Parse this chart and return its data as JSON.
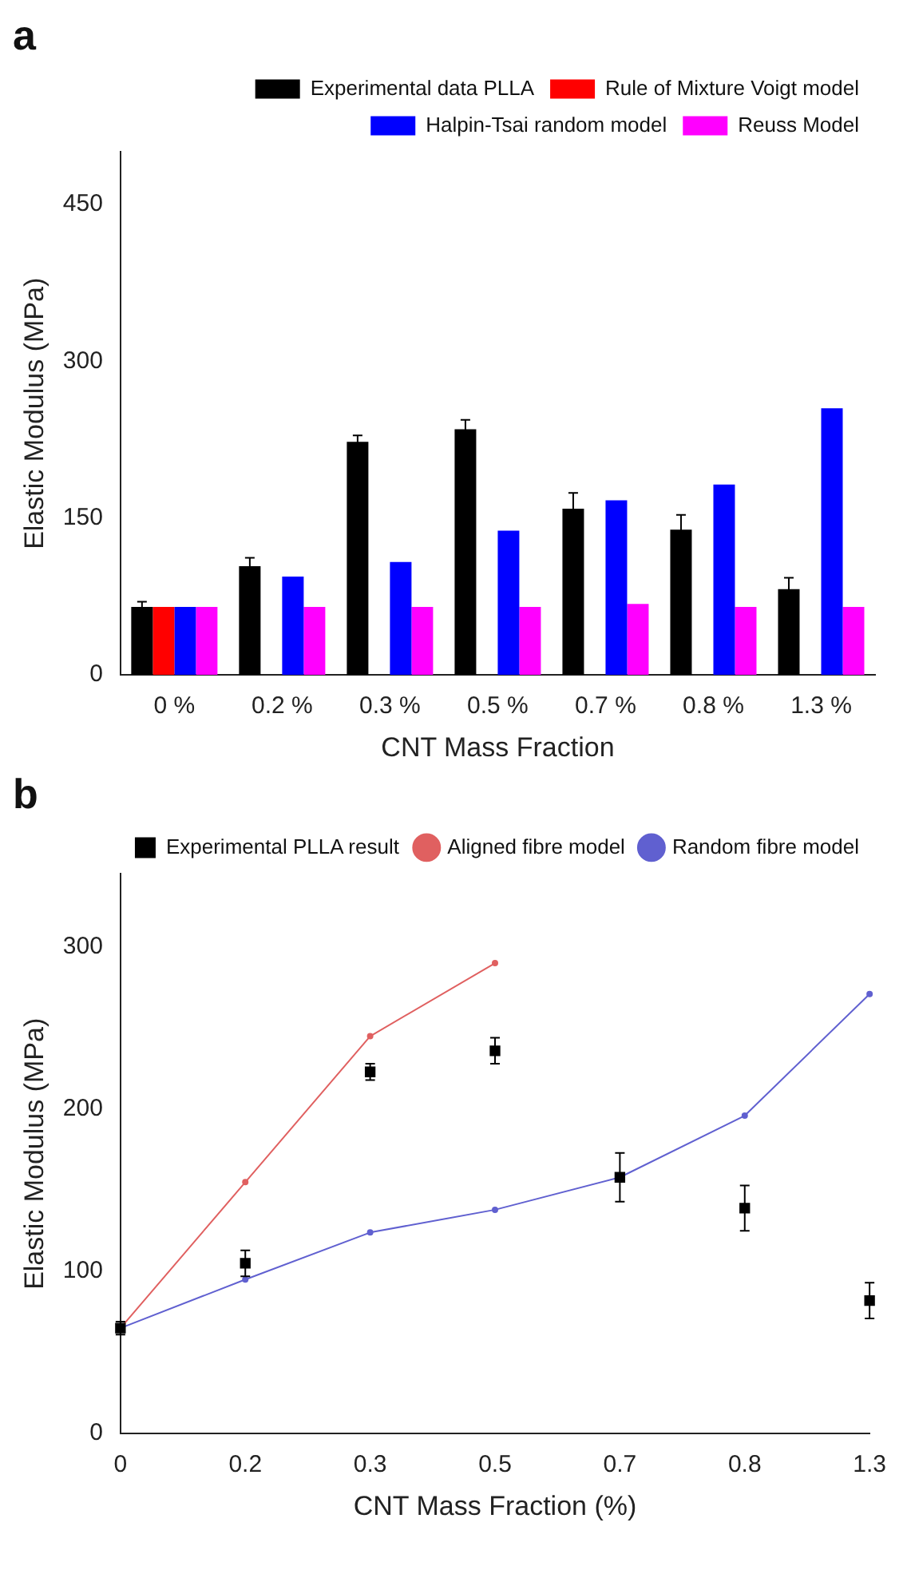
{
  "chart_data": [
    {
      "type": "bar",
      "title": "a",
      "xlabel": "CNT Mass Fraction",
      "ylabel": "Elastic Modulus (MPa)",
      "categories": [
        "0 %",
        "0.2 %",
        "0.3 %",
        "0.5 %",
        "0.7 %",
        "0.8 %",
        "1.3 %"
      ],
      "ylim": [
        0,
        500
      ],
      "yticks": [
        0,
        150,
        300,
        450
      ],
      "legend": "top right",
      "grid": false,
      "series": [
        {
          "name": "Experimental data PLLA",
          "color": "#000000",
          "values": [
            65,
            104,
            223,
            235,
            159,
            139,
            82
          ],
          "errors": [
            5,
            8,
            6,
            9,
            15,
            14,
            11
          ]
        },
        {
          "name": "Rule of Mixture Voigt model",
          "color": "#ff0000",
          "values": [
            65,
            null,
            null,
            null,
            null,
            null,
            null
          ]
        },
        {
          "name": "Halpin-Tsai random model",
          "color": "#0000ff",
          "values": [
            65,
            94,
            108,
            138,
            167,
            182,
            255
          ]
        },
        {
          "name": "Reuss Model",
          "color": "#ff00ff",
          "values": [
            65,
            65,
            65,
            65,
            68,
            65,
            65
          ]
        }
      ]
    },
    {
      "type": "line",
      "title": "b",
      "xlabel": "CNT Mass Fraction (%)",
      "ylabel": "Elastic Modulus (MPa)",
      "categories": [
        "0",
        "0.2",
        "0.3",
        "0.5",
        "0.7",
        "0.8",
        "1.3"
      ],
      "ylim": [
        0,
        345
      ],
      "yticks": [
        0,
        100,
        200,
        300
      ],
      "legend": "top right",
      "grid": false,
      "series": [
        {
          "name": "Experimental PLLA result",
          "type": "scatter",
          "marker": "square",
          "color": "#000000",
          "values": [
            65,
            105,
            223,
            236,
            158,
            139,
            82
          ],
          "errors": [
            4,
            8,
            5,
            8,
            15,
            14,
            11
          ]
        },
        {
          "name": "Aligned fibre model",
          "type": "line",
          "marker": "circle",
          "color": "#e06060",
          "values": [
            65,
            155,
            245,
            290,
            null,
            null,
            null
          ]
        },
        {
          "name": "Random fibre model",
          "type": "line",
          "marker": "circle",
          "color": "#6060d0",
          "values": [
            65,
            95,
            124,
            138,
            158,
            196,
            271
          ]
        }
      ]
    }
  ]
}
